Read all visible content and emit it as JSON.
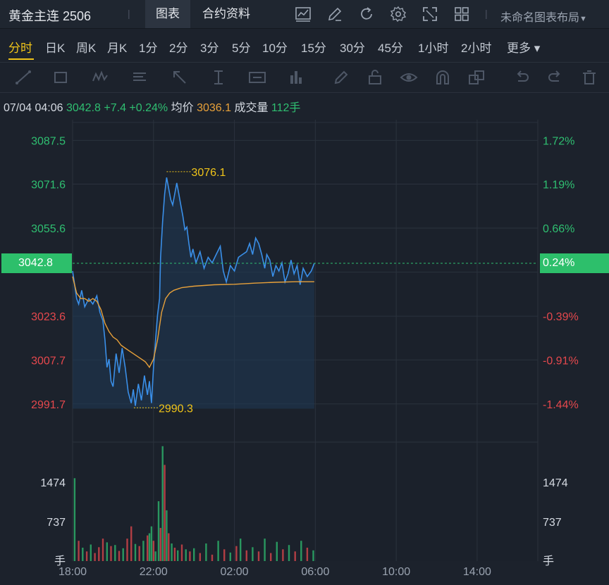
{
  "header": {
    "title": "黄金主连 2506",
    "separator": "|",
    "tabs": [
      {
        "label": "图表",
        "active": true
      },
      {
        "label": "合约资料",
        "active": false
      }
    ],
    "icons": [
      "indicator-icon",
      "draw-icon",
      "refresh-icon",
      "settings-icon",
      "fullscreen-icon",
      "grid-layout-icon"
    ],
    "layout_label": "未命名图表布局"
  },
  "periods": {
    "items": [
      "分时",
      "日K",
      "周K",
      "月K",
      "1分",
      "2分",
      "3分",
      "5分",
      "10分",
      "15分",
      "30分",
      "45分",
      "1小时",
      "2小时"
    ],
    "active": "分时",
    "more_label": "更多 ▾"
  },
  "draw_tools": [
    "line-tool-icon",
    "rectangle-tool-icon",
    "wave-tool-icon",
    "text-list-icon",
    "arrow-tool-icon",
    "cursor-measure-icon",
    "label-tool-icon",
    "bar-tool-icon",
    "pencil-icon",
    "lock-icon",
    "eye-icon",
    "magnet-icon",
    "layers-icon",
    "undo-icon",
    "redo-icon",
    "trash-icon"
  ],
  "info": {
    "datetime": "07/04 04:06",
    "price": "3042.8",
    "change": "+7.4",
    "change_pct": "+0.24%",
    "avg_label": "均价",
    "avg_value": "3036.1",
    "vol_label": "成交量",
    "vol_value": "112手"
  },
  "colors": {
    "up": "#2fbf71",
    "down": "#e5484d",
    "price_line": "#3a8fe8",
    "avg_line": "#e8a13a",
    "marker": "#f0c419",
    "current_tag": "#2dbf6b"
  },
  "chart_data": {
    "type": "line",
    "x_ticks": [
      "18:00",
      "22:00",
      "02:00",
      "06:00",
      "10:00",
      "14:00"
    ],
    "y_ticks": [
      "3087.5",
      "3071.6",
      "3055.6",
      "3023.6",
      "3007.7",
      "2991.7"
    ],
    "y_pct_ticks": [
      "1.72%",
      "1.19%",
      "0.66%",
      "-0.39%",
      "-0.91%",
      "-1.44%"
    ],
    "current_price": "3042.8",
    "current_pct": "0.24%",
    "high_label": "3076.1",
    "low_label": "2990.3",
    "ylim": [
      2985,
      3095
    ],
    "xlim_hours": [
      0,
      23
    ],
    "price_series": [
      [
        0.0,
        3040
      ],
      [
        0.1,
        3035
      ],
      [
        0.2,
        3030
      ],
      [
        0.3,
        3028
      ],
      [
        0.45,
        3033
      ],
      [
        0.6,
        3027
      ],
      [
        0.8,
        3030
      ],
      [
        1.0,
        3028
      ],
      [
        1.2,
        3031
      ],
      [
        1.35,
        3025
      ],
      [
        1.5,
        3022
      ],
      [
        1.6,
        3015
      ],
      [
        1.7,
        3005
      ],
      [
        1.8,
        3008
      ],
      [
        1.9,
        3000
      ],
      [
        2.0,
        2998
      ],
      [
        2.15,
        3010
      ],
      [
        2.3,
        3003
      ],
      [
        2.45,
        3012
      ],
      [
        2.6,
        3005
      ],
      [
        2.75,
        2996
      ],
      [
        2.9,
        2992
      ],
      [
        3.0,
        2997
      ],
      [
        3.1,
        2991
      ],
      [
        3.25,
        2999
      ],
      [
        3.4,
        2993
      ],
      [
        3.55,
        3002
      ],
      [
        3.7,
        2995
      ],
      [
        3.8,
        3000
      ],
      [
        3.9,
        2992
      ],
      [
        4.0,
        3005
      ],
      [
        4.1,
        3015
      ],
      [
        4.2,
        3024
      ],
      [
        4.3,
        3030
      ],
      [
        4.35,
        3045
      ],
      [
        4.45,
        3058
      ],
      [
        4.55,
        3068
      ],
      [
        4.65,
        3074
      ],
      [
        4.75,
        3070
      ],
      [
        4.85,
        3066
      ],
      [
        4.95,
        3064
      ],
      [
        5.05,
        3068
      ],
      [
        5.15,
        3072
      ],
      [
        5.25,
        3068
      ],
      [
        5.35,
        3064
      ],
      [
        5.45,
        3060
      ],
      [
        5.55,
        3055
      ],
      [
        5.65,
        3056
      ],
      [
        5.75,
        3050
      ],
      [
        5.85,
        3045
      ],
      [
        5.95,
        3048
      ],
      [
        6.1,
        3043
      ],
      [
        6.3,
        3047
      ],
      [
        6.5,
        3041
      ],
      [
        6.7,
        3045
      ],
      [
        6.9,
        3043
      ],
      [
        7.1,
        3046
      ],
      [
        7.3,
        3049
      ],
      [
        7.45,
        3040
      ],
      [
        7.6,
        3036
      ],
      [
        7.8,
        3042
      ],
      [
        8.0,
        3040
      ],
      [
        8.2,
        3045
      ],
      [
        8.4,
        3046
      ],
      [
        8.6,
        3047
      ],
      [
        8.75,
        3050
      ],
      [
        8.9,
        3046
      ],
      [
        9.05,
        3052
      ],
      [
        9.2,
        3050
      ],
      [
        9.35,
        3046
      ],
      [
        9.5,
        3041
      ],
      [
        9.6,
        3046
      ],
      [
        9.75,
        3044
      ],
      [
        9.9,
        3038
      ],
      [
        10.05,
        3042
      ],
      [
        10.2,
        3040
      ],
      [
        10.35,
        3043
      ],
      [
        10.5,
        3036
      ],
      [
        10.65,
        3039
      ],
      [
        10.8,
        3044
      ],
      [
        10.95,
        3039
      ],
      [
        11.1,
        3042
      ],
      [
        11.25,
        3035
      ],
      [
        11.4,
        3041
      ],
      [
        11.6,
        3038
      ],
      [
        11.8,
        3040
      ],
      [
        11.95,
        3042.8
      ]
    ],
    "avg_series": [
      [
        0.0,
        3038
      ],
      [
        0.2,
        3032
      ],
      [
        0.4,
        3030
      ],
      [
        0.6,
        3030
      ],
      [
        0.8,
        3029
      ],
      [
        1.0,
        3030
      ],
      [
        1.2,
        3029
      ],
      [
        1.4,
        3026
      ],
      [
        1.6,
        3021
      ],
      [
        1.8,
        3018
      ],
      [
        2.0,
        3016
      ],
      [
        2.2,
        3015
      ],
      [
        2.4,
        3013
      ],
      [
        2.6,
        3012
      ],
      [
        2.8,
        3011
      ],
      [
        3.0,
        3010
      ],
      [
        3.2,
        3009
      ],
      [
        3.4,
        3008
      ],
      [
        3.6,
        3007
      ],
      [
        3.8,
        3005
      ],
      [
        4.0,
        3008
      ],
      [
        4.2,
        3015
      ],
      [
        4.4,
        3025
      ],
      [
        4.6,
        3030
      ],
      [
        4.8,
        3032
      ],
      [
        5.0,
        3033
      ],
      [
        5.4,
        3034
      ],
      [
        6.0,
        3034.5
      ],
      [
        7.0,
        3035
      ],
      [
        8.0,
        3035.2
      ],
      [
        9.0,
        3035.6
      ],
      [
        10.0,
        3035.9
      ],
      [
        11.0,
        3036.1
      ],
      [
        11.95,
        3036.1
      ]
    ],
    "volume_ticks": [
      "1474",
      "737"
    ],
    "volume_unit": "手",
    "volume_ylim": [
      0,
      2200
    ],
    "volume": [
      [
        0.1,
        1550,
        "up"
      ],
      [
        0.3,
        380,
        "down"
      ],
      [
        0.5,
        250,
        "up"
      ],
      [
        0.7,
        180,
        "down"
      ],
      [
        0.9,
        310,
        "up"
      ],
      [
        1.1,
        150,
        "down"
      ],
      [
        1.3,
        260,
        "down"
      ],
      [
        1.5,
        420,
        "down"
      ],
      [
        1.7,
        350,
        "up"
      ],
      [
        1.9,
        280,
        "down"
      ],
      [
        2.1,
        300,
        "up"
      ],
      [
        2.3,
        190,
        "down"
      ],
      [
        2.5,
        240,
        "up"
      ],
      [
        2.7,
        420,
        "down"
      ],
      [
        2.9,
        650,
        "down"
      ],
      [
        3.1,
        320,
        "up"
      ],
      [
        3.3,
        280,
        "down"
      ],
      [
        3.5,
        380,
        "up"
      ],
      [
        3.7,
        480,
        "down"
      ],
      [
        3.8,
        520,
        "up"
      ],
      [
        3.9,
        650,
        "up"
      ],
      [
        4.0,
        380,
        "down"
      ],
      [
        4.1,
        180,
        "up"
      ],
      [
        4.25,
        1120,
        "up"
      ],
      [
        4.35,
        620,
        "down"
      ],
      [
        4.45,
        2150,
        "up"
      ],
      [
        4.55,
        1800,
        "down"
      ],
      [
        4.65,
        950,
        "up"
      ],
      [
        4.75,
        520,
        "down"
      ],
      [
        4.9,
        330,
        "up"
      ],
      [
        5.05,
        250,
        "down"
      ],
      [
        5.2,
        200,
        "up"
      ],
      [
        5.4,
        310,
        "down"
      ],
      [
        5.6,
        220,
        "up"
      ],
      [
        5.8,
        180,
        "down"
      ],
      [
        6.0,
        240,
        "up"
      ],
      [
        6.3,
        150,
        "down"
      ],
      [
        6.6,
        330,
        "up"
      ],
      [
        6.9,
        120,
        "down"
      ],
      [
        7.2,
        380,
        "up"
      ],
      [
        7.5,
        220,
        "down"
      ],
      [
        7.8,
        160,
        "up"
      ],
      [
        8.1,
        280,
        "down"
      ],
      [
        8.3,
        420,
        "up"
      ],
      [
        8.6,
        200,
        "down"
      ],
      [
        8.9,
        260,
        "up"
      ],
      [
        9.2,
        180,
        "down"
      ],
      [
        9.5,
        420,
        "up"
      ],
      [
        9.8,
        150,
        "down"
      ],
      [
        10.1,
        360,
        "up"
      ],
      [
        10.4,
        220,
        "down"
      ],
      [
        10.7,
        300,
        "up"
      ],
      [
        11.0,
        180,
        "down"
      ],
      [
        11.3,
        380,
        "up"
      ],
      [
        11.6,
        250,
        "down"
      ],
      [
        11.9,
        200,
        "up"
      ]
    ]
  }
}
